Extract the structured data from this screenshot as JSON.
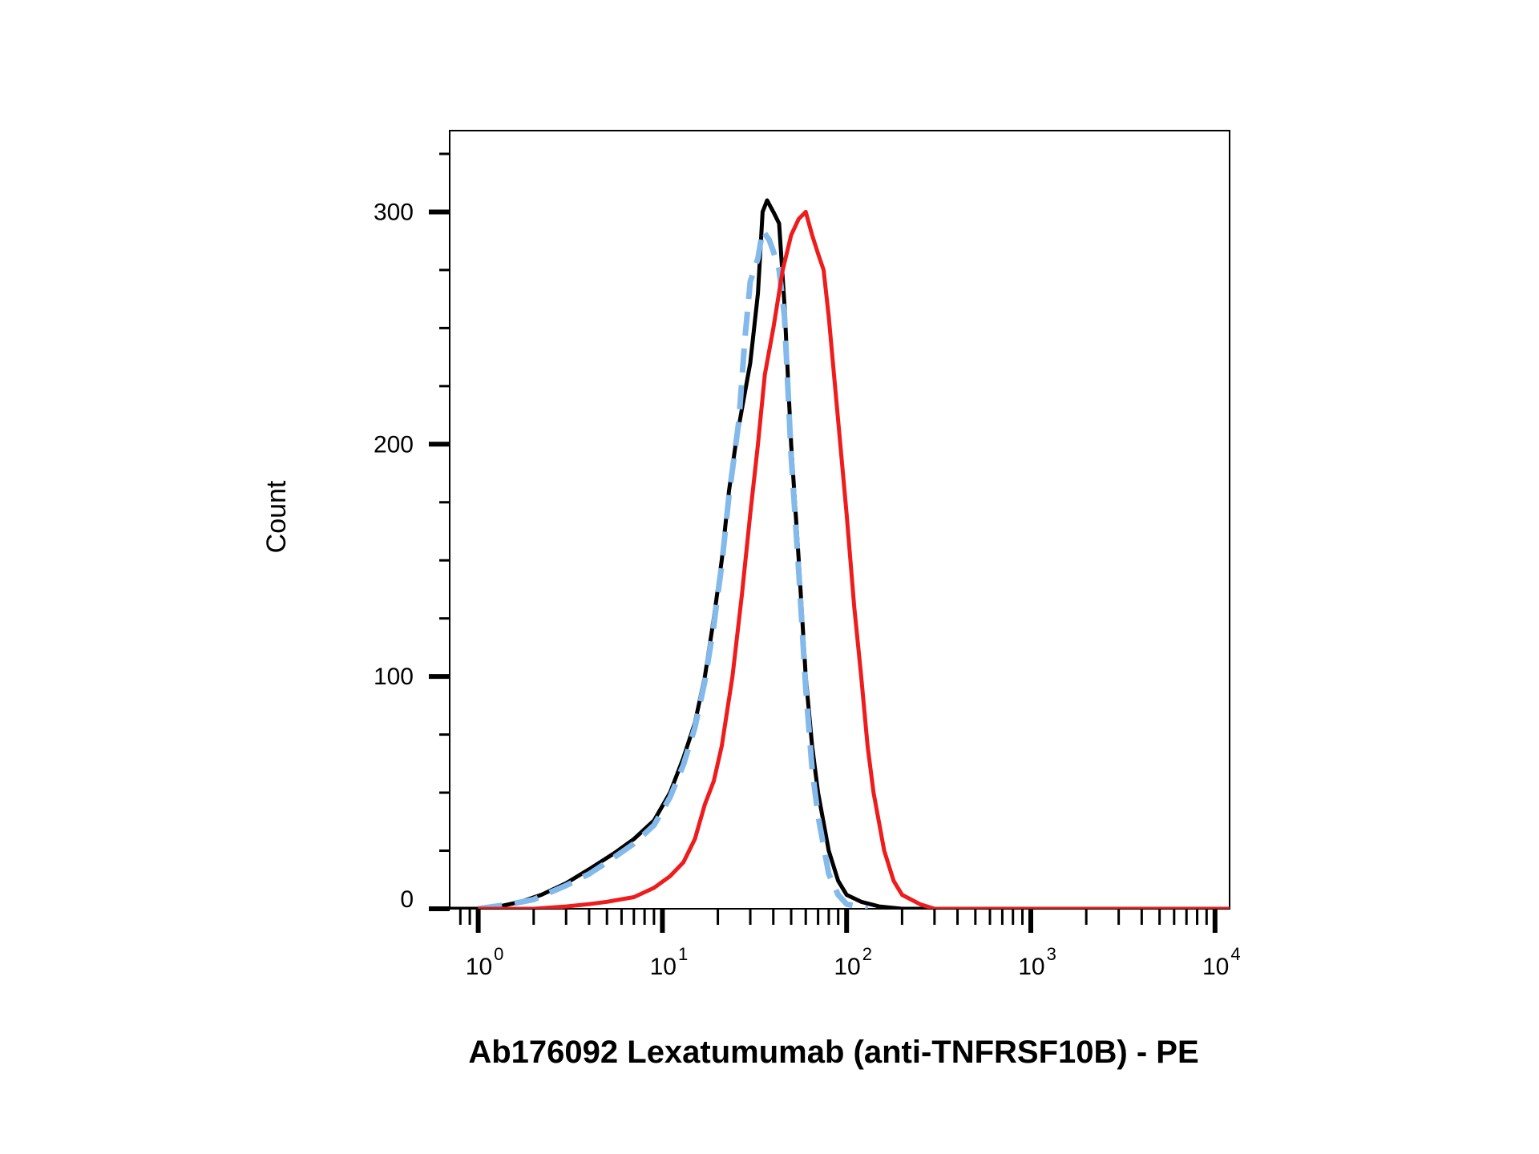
{
  "chart_data": {
    "type": "line",
    "xlabel": "Ab176092 Lexatumumab (anti-TNFRSF10B) - PE",
    "ylabel": "Count",
    "x_scale": "log",
    "xlim": [
      0.7,
      12000
    ],
    "ylim": [
      0,
      335
    ],
    "x_ticks": [
      {
        "value": 1,
        "base": "10",
        "exponent": "0"
      },
      {
        "value": 10,
        "base": "10",
        "exponent": "1"
      },
      {
        "value": 100,
        "base": "10",
        "exponent": "2"
      },
      {
        "value": 1000,
        "base": "10",
        "exponent": "3"
      },
      {
        "value": 10000,
        "base": "10",
        "exponent": "4"
      }
    ],
    "y_ticks": [
      {
        "value": 0,
        "label": "0"
      },
      {
        "value": 100,
        "label": "100"
      },
      {
        "value": 200,
        "label": "200"
      },
      {
        "value": 300,
        "label": "300"
      }
    ],
    "grid": false,
    "legend": false,
    "series": [
      {
        "color": "#000000",
        "style": "solid",
        "points": [
          [
            0.7,
            0
          ],
          [
            1.0,
            0
          ],
          [
            1.3,
            1
          ],
          [
            1.7,
            3
          ],
          [
            2.2,
            6
          ],
          [
            3.0,
            11
          ],
          [
            4.0,
            17
          ],
          [
            5.5,
            24
          ],
          [
            7.0,
            30
          ],
          [
            9.0,
            38
          ],
          [
            11.0,
            50
          ],
          [
            13.0,
            65
          ],
          [
            15.0,
            80
          ],
          [
            17.0,
            100
          ],
          [
            19.0,
            125
          ],
          [
            21.0,
            150
          ],
          [
            23.0,
            180
          ],
          [
            25.0,
            200
          ],
          [
            27.0,
            215
          ],
          [
            30.0,
            235
          ],
          [
            33.0,
            265
          ],
          [
            35.0,
            300
          ],
          [
            37.0,
            305
          ],
          [
            40.0,
            300
          ],
          [
            43.0,
            295
          ],
          [
            46.0,
            260
          ],
          [
            50.0,
            200
          ],
          [
            55.0,
            150
          ],
          [
            60.0,
            100
          ],
          [
            65.0,
            70
          ],
          [
            70.0,
            50
          ],
          [
            80.0,
            25
          ],
          [
            90.0,
            12
          ],
          [
            100.0,
            6
          ],
          [
            120.0,
            3
          ],
          [
            150.0,
            1
          ],
          [
            200.0,
            0
          ],
          [
            12000.0,
            0
          ]
        ]
      },
      {
        "color": "#84b9eb",
        "style": "dashed",
        "points": [
          [
            1.0,
            0
          ],
          [
            1.5,
            2
          ],
          [
            2.0,
            4
          ],
          [
            3.0,
            10
          ],
          [
            4.0,
            15
          ],
          [
            5.0,
            20
          ],
          [
            7.0,
            28
          ],
          [
            9.0,
            36
          ],
          [
            11.0,
            48
          ],
          [
            13.0,
            62
          ],
          [
            15.0,
            78
          ],
          [
            17.0,
            98
          ],
          [
            19.0,
            122
          ],
          [
            21.0,
            148
          ],
          [
            23.0,
            178
          ],
          [
            26.0,
            210
          ],
          [
            28.0,
            245
          ],
          [
            30.0,
            270
          ],
          [
            33.0,
            280
          ],
          [
            35.0,
            292
          ],
          [
            38.0,
            288
          ],
          [
            40.0,
            283
          ],
          [
            43.0,
            275
          ],
          [
            46.0,
            255
          ],
          [
            50.0,
            195
          ],
          [
            55.0,
            145
          ],
          [
            60.0,
            95
          ],
          [
            65.0,
            60
          ],
          [
            70.0,
            40
          ],
          [
            80.0,
            15
          ],
          [
            90.0,
            6
          ],
          [
            100.0,
            2
          ],
          [
            130.0,
            0
          ]
        ]
      },
      {
        "color": "#ee1c1c",
        "style": "solid",
        "points": [
          [
            1.0,
            0
          ],
          [
            2.0,
            0
          ],
          [
            3.0,
            1
          ],
          [
            4.0,
            2
          ],
          [
            5.0,
            3
          ],
          [
            7.0,
            5
          ],
          [
            9.0,
            9
          ],
          [
            11.0,
            14
          ],
          [
            13.0,
            20
          ],
          [
            15.0,
            30
          ],
          [
            17.0,
            45
          ],
          [
            19.0,
            55
          ],
          [
            21.0,
            70
          ],
          [
            24.0,
            100
          ],
          [
            27.0,
            135
          ],
          [
            30.0,
            170
          ],
          [
            33.0,
            200
          ],
          [
            36.0,
            230
          ],
          [
            40.0,
            250
          ],
          [
            45.0,
            275
          ],
          [
            50.0,
            290
          ],
          [
            55.0,
            297
          ],
          [
            60.0,
            300
          ],
          [
            65.0,
            290
          ],
          [
            70.0,
            282
          ],
          [
            75.0,
            275
          ],
          [
            80.0,
            255
          ],
          [
            90.0,
            210
          ],
          [
            100.0,
            170
          ],
          [
            110.0,
            130
          ],
          [
            120.0,
            100
          ],
          [
            130.0,
            70
          ],
          [
            140.0,
            50
          ],
          [
            160.0,
            25
          ],
          [
            180.0,
            12
          ],
          [
            200.0,
            6
          ],
          [
            250.0,
            2
          ],
          [
            300.0,
            0
          ],
          [
            12000.0,
            0
          ]
        ]
      }
    ]
  }
}
